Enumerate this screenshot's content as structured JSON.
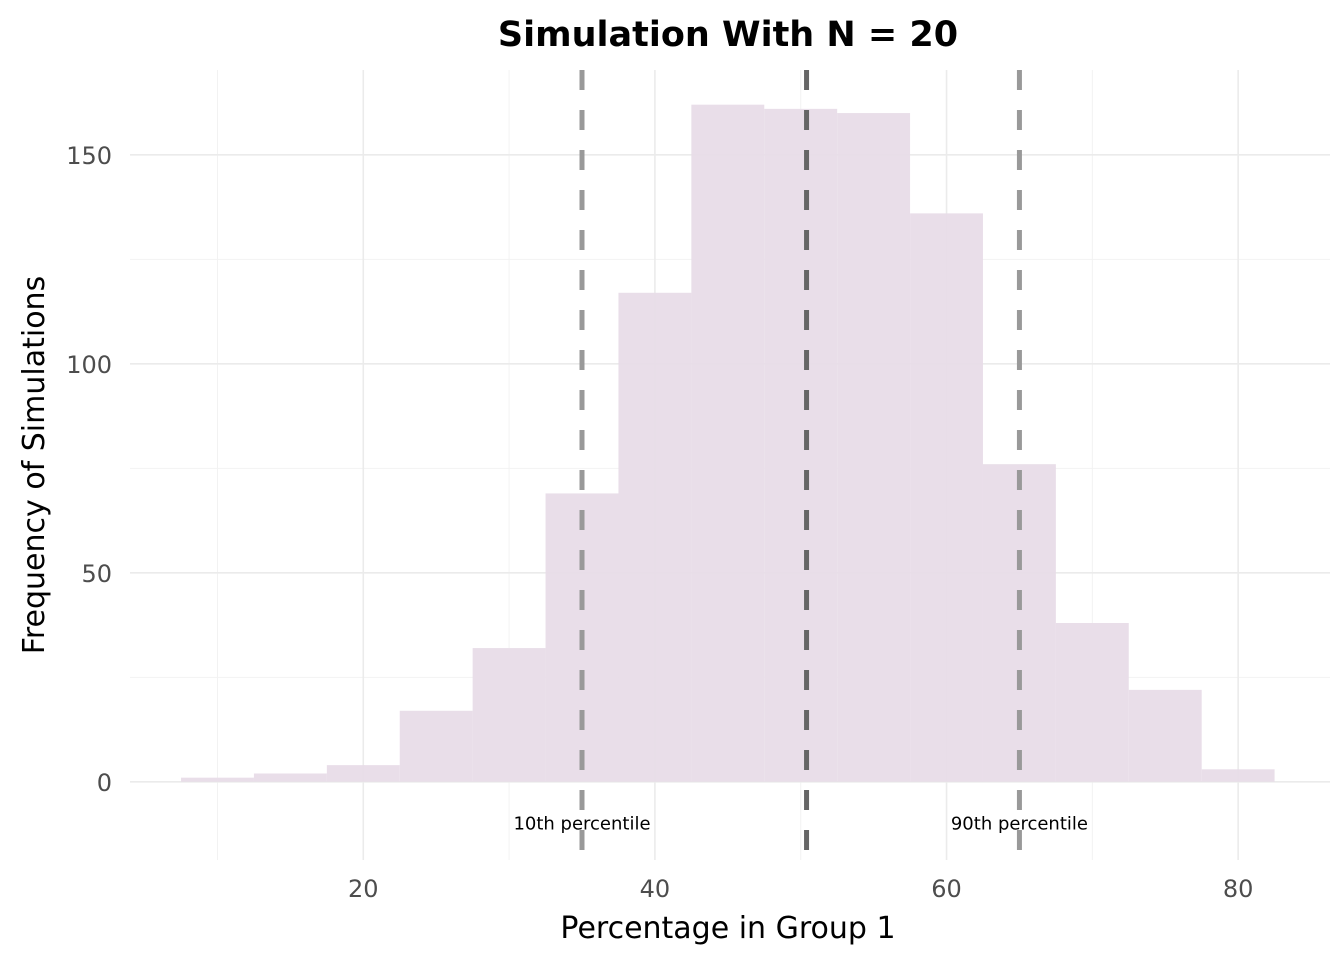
{
  "chart_data": {
    "type": "bar",
    "subtype": "histogram",
    "title": "Simulation With N = 20",
    "xlabel": "Percentage in Group 1",
    "ylabel": "Frequency of Simulations",
    "xlim": [
      4,
      86.3
    ],
    "ylim": [
      -18.7,
      170.3
    ],
    "x_ticks": [
      20,
      40,
      60,
      80
    ],
    "x_minor_ticks": [
      10,
      30,
      50,
      70
    ],
    "y_ticks": [
      0,
      50,
      100,
      150
    ],
    "y_minor_ticks": [
      25,
      75,
      125
    ],
    "grid": true,
    "bar_color": "#e8dce8",
    "bins": [
      {
        "x0": 7.5,
        "x1": 12.5,
        "count": 1
      },
      {
        "x0": 12.5,
        "x1": 17.5,
        "count": 2
      },
      {
        "x0": 17.5,
        "x1": 22.5,
        "count": 4
      },
      {
        "x0": 22.5,
        "x1": 27.5,
        "count": 17
      },
      {
        "x0": 27.5,
        "x1": 32.5,
        "count": 32
      },
      {
        "x0": 32.5,
        "x1": 37.5,
        "count": 69
      },
      {
        "x0": 37.5,
        "x1": 42.5,
        "count": 117
      },
      {
        "x0": 42.5,
        "x1": 47.5,
        "count": 162
      },
      {
        "x0": 47.5,
        "x1": 52.5,
        "count": 161
      },
      {
        "x0": 52.5,
        "x1": 57.5,
        "count": 160
      },
      {
        "x0": 57.5,
        "x1": 62.5,
        "count": 136
      },
      {
        "x0": 62.5,
        "x1": 67.5,
        "count": 76
      },
      {
        "x0": 67.5,
        "x1": 72.5,
        "count": 38
      },
      {
        "x0": 72.5,
        "x1": 77.5,
        "count": 22
      },
      {
        "x0": 77.5,
        "x1": 82.5,
        "count": 3
      }
    ],
    "reference_lines": [
      {
        "name": "10th-percentile-line",
        "x": 35,
        "color": "#999999",
        "style": "dashed",
        "label": "10th percentile"
      },
      {
        "name": "median-line",
        "x": 50.4,
        "color": "#666666",
        "style": "dashed",
        "label": ""
      },
      {
        "name": "90th-percentile-line",
        "x": 65,
        "color": "#999999",
        "style": "dashed",
        "label": "90th percentile"
      }
    ],
    "annotation_y": -10
  }
}
